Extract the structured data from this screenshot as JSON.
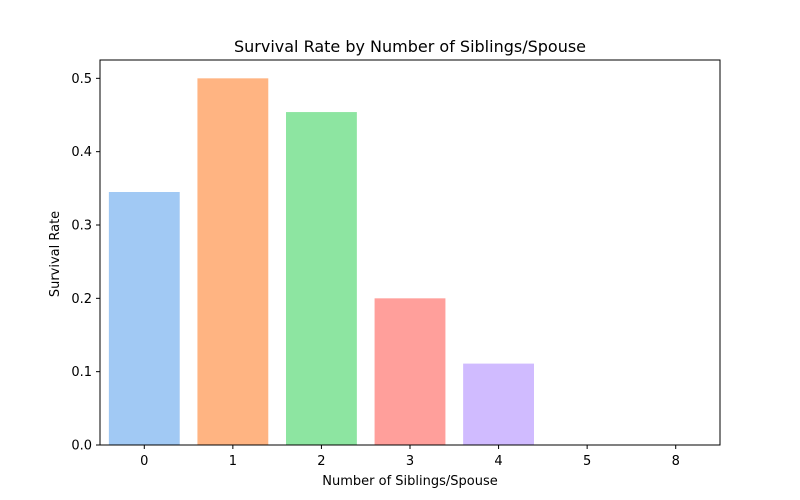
{
  "chart_data": {
    "type": "bar",
    "title": "Survival Rate by Number of Siblings/Spouse",
    "xlabel": "Number of Siblings/Spouse",
    "ylabel": "Survival Rate",
    "categories": [
      "0",
      "1",
      "2",
      "3",
      "4",
      "5",
      "8"
    ],
    "values": [
      0.345,
      0.5,
      0.454,
      0.2,
      0.111,
      0.0,
      0.0
    ],
    "ylim": [
      0,
      0.525
    ],
    "yticks": [
      "0.0",
      "0.1",
      "0.2",
      "0.3",
      "0.4",
      "0.5"
    ],
    "ytick_values": [
      0,
      0.1,
      0.2,
      0.3,
      0.4,
      0.5
    ],
    "colors": [
      "#a1c9f4",
      "#ffb482",
      "#8de5a1",
      "#ff9f9b",
      "#d0bbff",
      "#debb9b",
      "#fab0e4"
    ],
    "grid": false,
    "legend": "none"
  }
}
